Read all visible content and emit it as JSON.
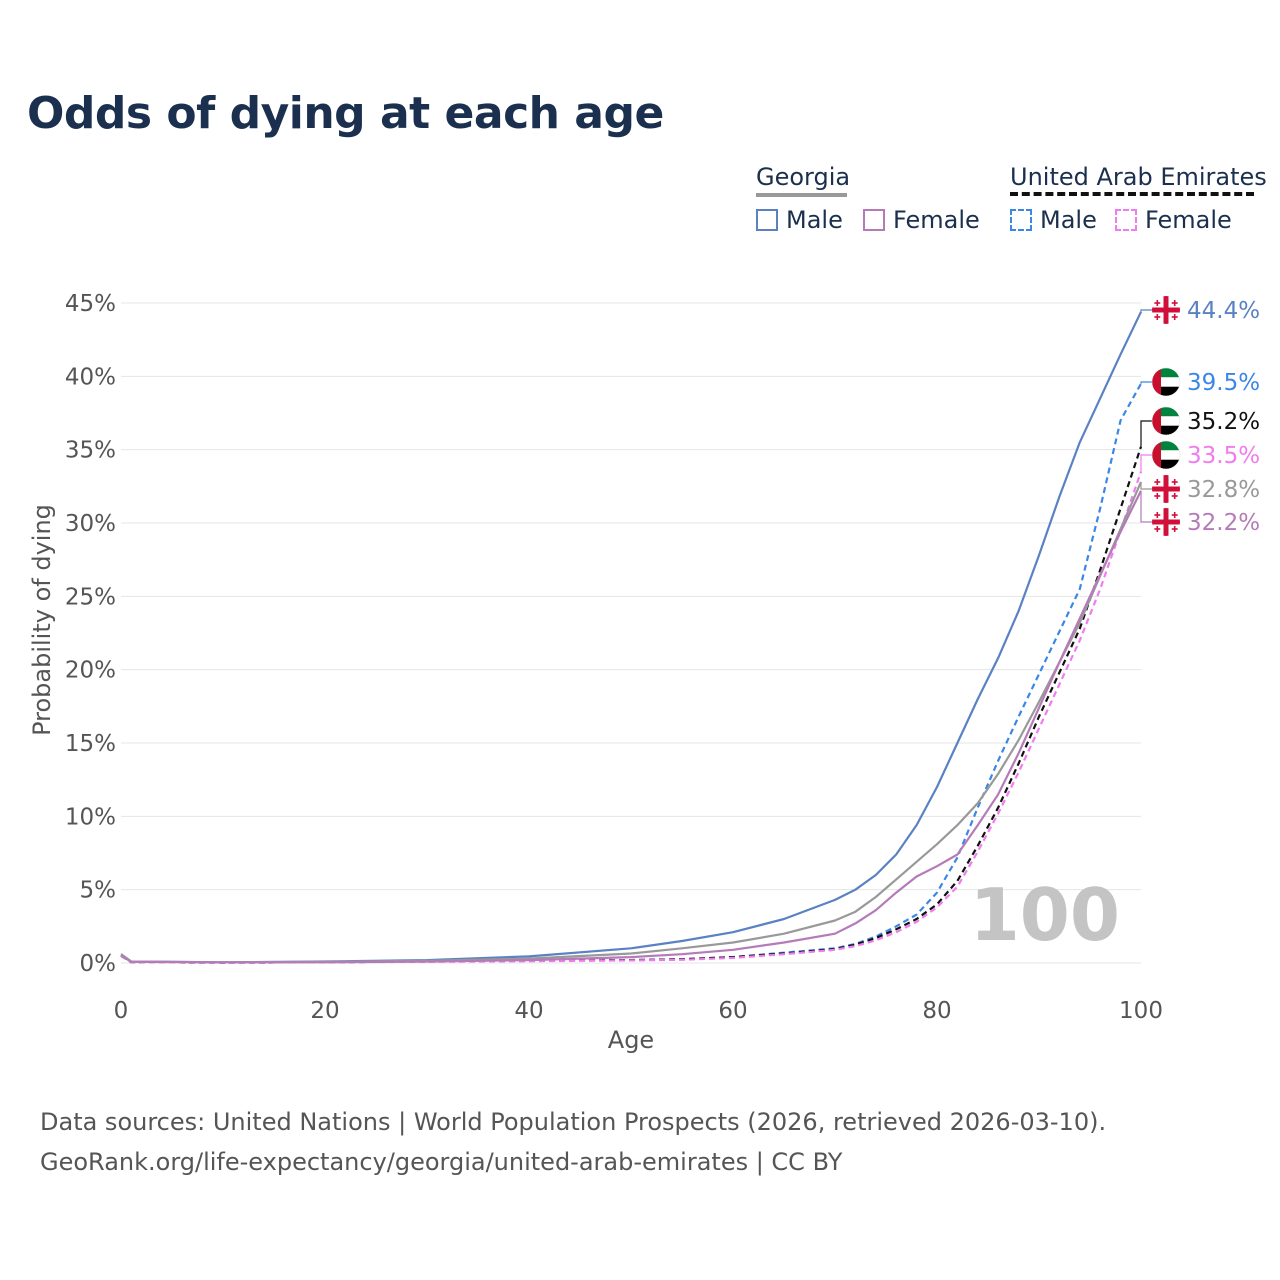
{
  "title": "Odds of dying at each age",
  "legend": {
    "georgia": {
      "label": "Georgia",
      "male": "Male",
      "female": "Female"
    },
    "uae": {
      "label": "United Arab Emirates",
      "male": "Male",
      "female": "Female"
    }
  },
  "watermark": "100",
  "footer": {
    "line1": "Data sources: United Nations | World Population Prospects (2026, retrieved 2026-03-10).",
    "line2": "GeoRank.org/life-expectancy/georgia/united-arab-emirates | CC BY"
  },
  "colors": {
    "georgia_male": "#5a82c2",
    "georgia_female": "#b57bb9",
    "georgia_total": "#999999",
    "uae_male": "#3b87e6",
    "uae_female": "#f07cf0",
    "uae_total": "#111111"
  },
  "chart_data": {
    "type": "line",
    "xlabel": "Age",
    "ylabel": "Probability of dying",
    "xlim": [
      0,
      100
    ],
    "ylim": [
      0,
      45
    ],
    "xticks": [
      0,
      20,
      40,
      60,
      80,
      100
    ],
    "yticks": [
      0,
      5,
      10,
      15,
      20,
      25,
      30,
      35,
      40,
      45
    ],
    "x": [
      0,
      1,
      10,
      20,
      30,
      40,
      50,
      55,
      60,
      65,
      70,
      72,
      74,
      76,
      78,
      80,
      82,
      84,
      86,
      88,
      90,
      92,
      94,
      96,
      98,
      100
    ],
    "series": [
      {
        "name": "Georgia Male",
        "key": "georgia_male",
        "dash": false,
        "end_label": "44.4%",
        "flag": "georgia",
        "values": [
          0.6,
          0.1,
          0.05,
          0.1,
          0.2,
          0.45,
          1.0,
          1.5,
          2.1,
          3.0,
          4.3,
          5.0,
          6.0,
          7.4,
          9.4,
          12.0,
          15.0,
          18.0,
          20.8,
          24.0,
          27.8,
          31.8,
          35.5,
          38.5,
          41.5,
          44.4
        ]
      },
      {
        "name": "UAE Male",
        "key": "uae_male",
        "dash": true,
        "end_label": "39.5%",
        "flag": "uae",
        "values": [
          0.5,
          0.05,
          0.03,
          0.05,
          0.1,
          0.15,
          0.2,
          0.25,
          0.4,
          0.7,
          1.0,
          1.3,
          1.8,
          2.5,
          3.3,
          4.8,
          7.2,
          10.6,
          13.8,
          16.8,
          19.7,
          22.6,
          25.5,
          31.0,
          37.0,
          39.5
        ]
      },
      {
        "name": "UAE Total",
        "key": "uae_total",
        "dash": true,
        "end_label": "35.2%",
        "flag": "uae",
        "values": [
          0.5,
          0.05,
          0.03,
          0.05,
          0.1,
          0.15,
          0.2,
          0.25,
          0.4,
          0.65,
          0.95,
          1.25,
          1.7,
          2.3,
          3.0,
          4.0,
          5.6,
          8.0,
          10.6,
          13.6,
          16.8,
          19.8,
          22.8,
          26.8,
          31.0,
          35.2
        ]
      },
      {
        "name": "UAE Female",
        "key": "uae_female",
        "dash": true,
        "end_label": "33.5%",
        "flag": "uae",
        "values": [
          0.5,
          0.05,
          0.03,
          0.05,
          0.08,
          0.12,
          0.18,
          0.22,
          0.35,
          0.6,
          0.9,
          1.15,
          1.55,
          2.1,
          2.8,
          3.8,
          5.2,
          7.6,
          10.2,
          13.0,
          16.0,
          19.0,
          22.0,
          25.5,
          29.5,
          33.5
        ]
      },
      {
        "name": "Georgia Total",
        "key": "georgia_total",
        "dash": false,
        "end_label": "32.8%",
        "flag": "georgia",
        "values": [
          0.6,
          0.1,
          0.05,
          0.08,
          0.15,
          0.3,
          0.65,
          1.0,
          1.4,
          2.0,
          2.9,
          3.5,
          4.5,
          5.7,
          6.9,
          8.1,
          9.4,
          10.9,
          12.9,
          15.2,
          17.8,
          20.5,
          23.2,
          26.4,
          29.6,
          32.8
        ]
      },
      {
        "name": "Georgia Female",
        "key": "georgia_female",
        "dash": false,
        "end_label": "32.2%",
        "flag": "georgia",
        "values": [
          0.5,
          0.08,
          0.04,
          0.05,
          0.1,
          0.2,
          0.4,
          0.6,
          0.9,
          1.4,
          2.0,
          2.7,
          3.6,
          4.8,
          5.9,
          6.6,
          7.4,
          9.4,
          11.5,
          14.3,
          17.4,
          20.5,
          23.5,
          26.5,
          29.4,
          32.2
        ]
      }
    ]
  }
}
